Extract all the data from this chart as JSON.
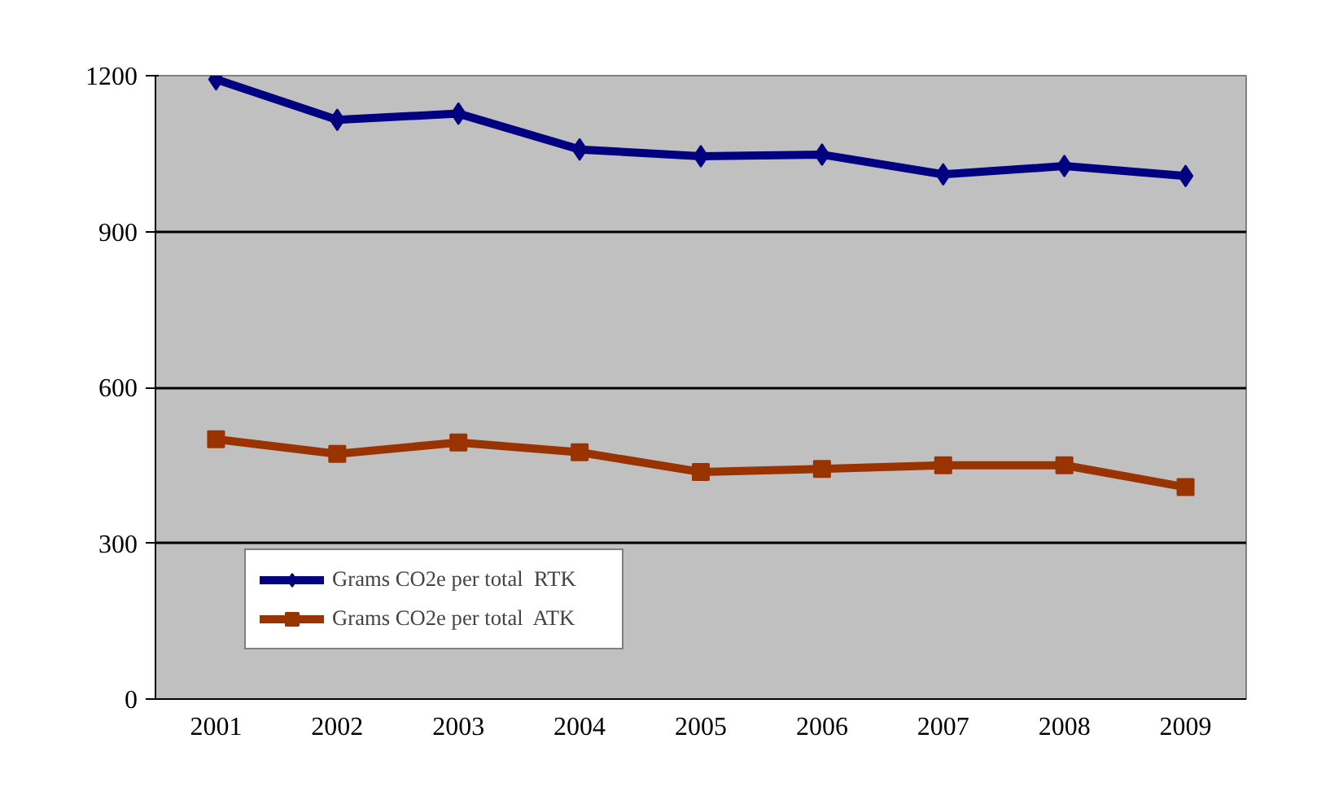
{
  "chart_data": {
    "type": "line",
    "categories": [
      "2001",
      "2002",
      "2003",
      "2004",
      "2005",
      "2006",
      "2007",
      "2008",
      "2009"
    ],
    "series": [
      {
        "name": "Grams CO2e per total  RTK",
        "color": "#000080",
        "marker": "diamond",
        "values": [
          1193,
          1115,
          1127,
          1058,
          1045,
          1048,
          1010,
          1026,
          1007
        ]
      },
      {
        "name": "Grams CO2e per total  ATK",
        "color": "#993300",
        "marker": "square",
        "values": [
          500,
          472,
          494,
          475,
          437,
          443,
          450,
          450,
          408
        ]
      }
    ],
    "ylim": [
      0,
      1200
    ],
    "yticks": [
      0,
      300,
      600,
      900,
      1200
    ],
    "grid": "y",
    "legend": "bottom left",
    "line_style": "solid"
  }
}
